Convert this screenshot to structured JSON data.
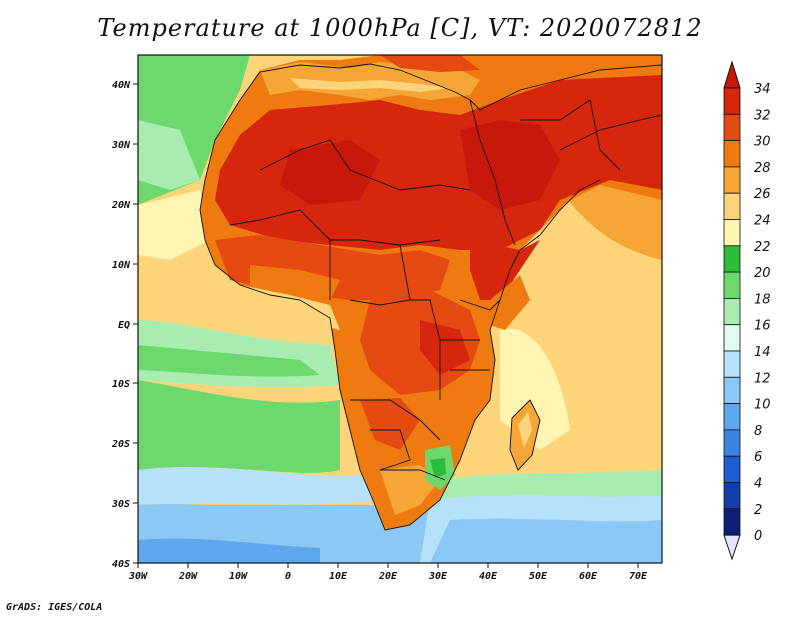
{
  "title": "Temperature at 1000hPa [C], VT: 2020072812",
  "footer": "GrADS: IGES/COLA",
  "map": {
    "lon_range": [
      -30,
      75
    ],
    "lat_range": [
      -40,
      45
    ],
    "x_ticks": [
      "30W",
      "20W",
      "10W",
      "0",
      "10E",
      "20E",
      "30E",
      "40E",
      "50E",
      "60E",
      "70E"
    ],
    "y_ticks": [
      "40N",
      "30N",
      "20N",
      "10N",
      "EQ",
      "10S",
      "20S",
      "30S",
      "40S"
    ]
  },
  "colorbar": {
    "labels": [
      "34",
      "32",
      "30",
      "28",
      "26",
      "24",
      "22",
      "20",
      "18",
      "16",
      "14",
      "12",
      "10",
      "8",
      "6",
      "4",
      "2",
      "0"
    ],
    "colors": [
      "#d6260e",
      "#e44a12",
      "#ef7a10",
      "#f6a636",
      "#fcd57a",
      "#fff4b0",
      "#2dbd3a",
      "#6cd86e",
      "#a8ecb0",
      "#e2fbf2",
      "#b5e1fa",
      "#8cc8f5",
      "#5ea7ee",
      "#3b84e1",
      "#1e5cd2",
      "#143ea8",
      "#0b2075"
    ],
    "top_color": "#c8180c",
    "bottom_color": "#e5e5fa"
  }
}
